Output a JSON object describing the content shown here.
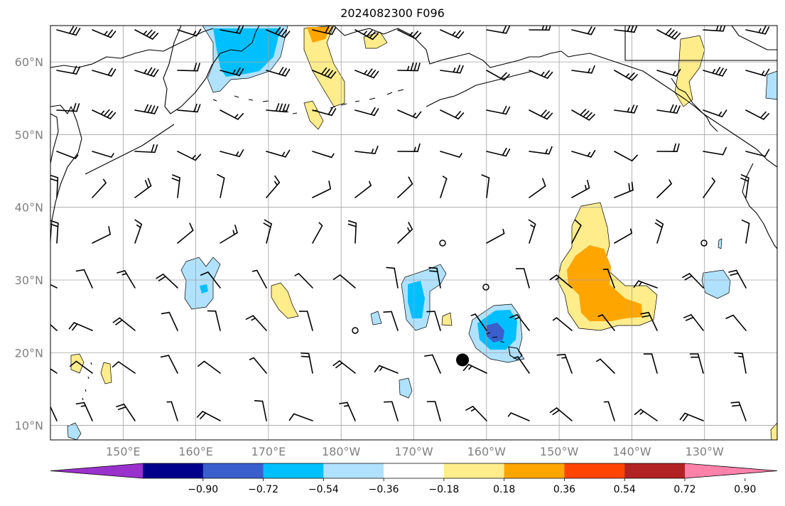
{
  "title": "2024082300 F096",
  "lat_labels": [
    "60°N",
    "50°N",
    "40°N",
    "30°N",
    "20°N",
    "10°N"
  ],
  "lon_labels": [
    "150°E",
    "160°E",
    "170°E",
    "180°W",
    "170°W",
    "160°W",
    "150°W",
    "140°W",
    "130°W"
  ],
  "map": {
    "lon_range_deg_east": [
      140,
      240
    ],
    "lat_range": [
      8,
      65
    ],
    "gridlines": true,
    "coastlines": true,
    "wind_barbs": true,
    "marker": {
      "lon": 196.7,
      "lat": 19,
      "label": ""
    }
  },
  "colorbar": {
    "tick_labels": [
      "−0.90",
      "−0.72",
      "−0.54",
      "−0.36",
      "−0.18",
      "0.18",
      "0.36",
      "0.54",
      "0.72",
      "0.90"
    ],
    "colors": [
      "#9932cc",
      "#00008b",
      "#3a5fcd",
      "#00bfff",
      "#b0e2ff",
      "#ffffff",
      "#ffec8b",
      "#ffa500",
      "#ff4500",
      "#b22222",
      "#ff82ab"
    ],
    "extend": "both"
  }
}
